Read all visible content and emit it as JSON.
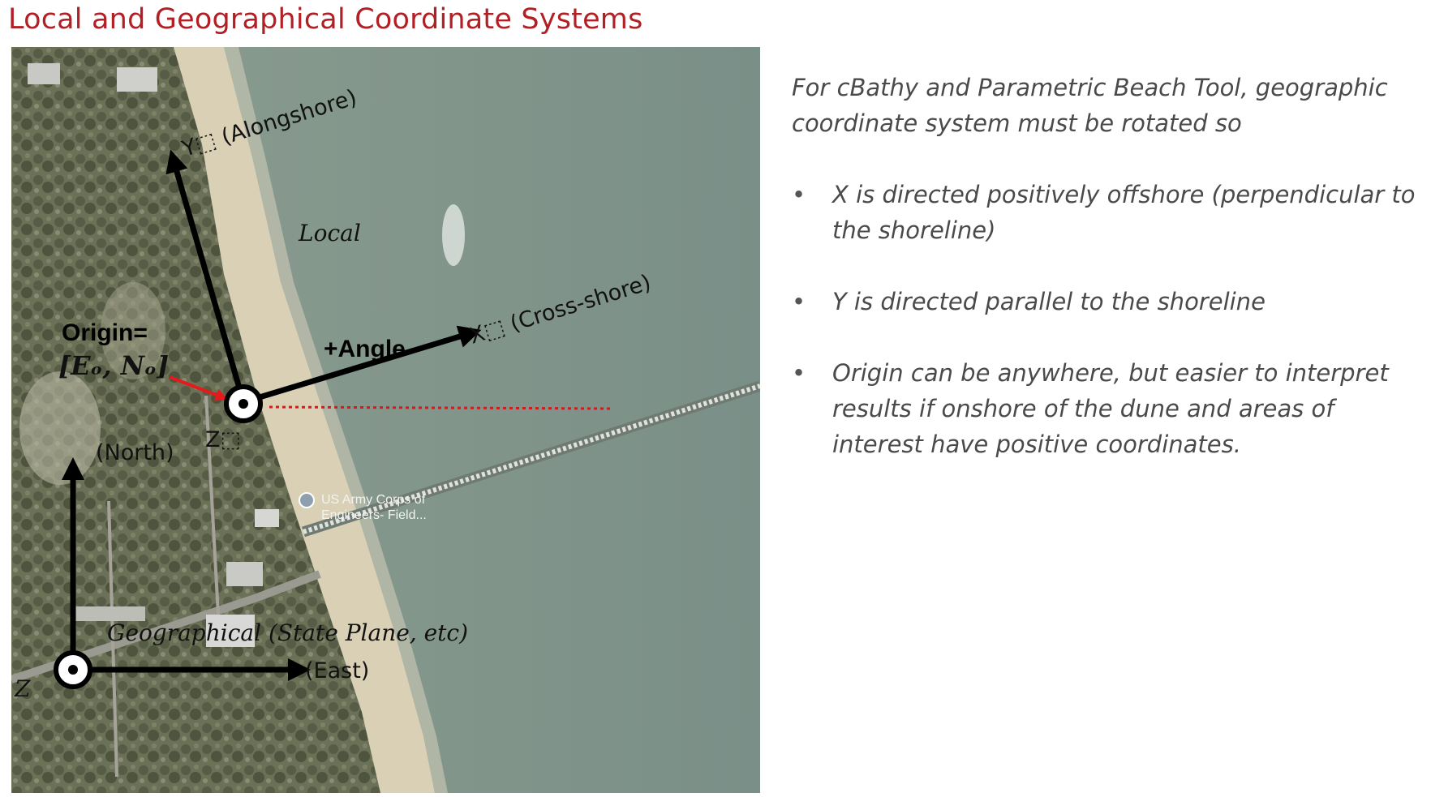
{
  "title": "Local and Geographical Coordinate Systems",
  "diagram": {
    "local": {
      "x_axis_label": "X⬚ (Cross-shore)",
      "y_axis_label": "Y⬚ (Alongshore)",
      "z_label": "Z⬚",
      "system_label": "Local",
      "angle_label": "+Angle",
      "origin_label_line1": "Origin=",
      "origin_label_line2": "[Eₒ, Nₒ]"
    },
    "geographical": {
      "north_label": "(North)",
      "east_label": "(East)",
      "z_label": "Z",
      "system_label": "Geographical (State Plane, etc)"
    },
    "map_place_label_line1": "US Army Corps of",
    "map_place_label_line2": "Engineers- Field..."
  },
  "description": {
    "intro": "For cBathy and Parametric Beach Tool, geographic coordinate system must be rotated so",
    "bullets": [
      "X is directed positively offshore (perpendicular to the shoreline)",
      "Y is directed parallel to the shoreline",
      "Origin can be anywhere, but easier to interpret results if onshore of the dune and areas of interest have positive coordinates."
    ]
  },
  "colors": {
    "title": "#b21f24",
    "ocean": "#7f9489",
    "sand": "#d9d0b6",
    "vegetation": "#5f6650",
    "origin_pointer": "#e41a1c",
    "angle_reference_line": "#d7191c",
    "axis": "#000000"
  }
}
